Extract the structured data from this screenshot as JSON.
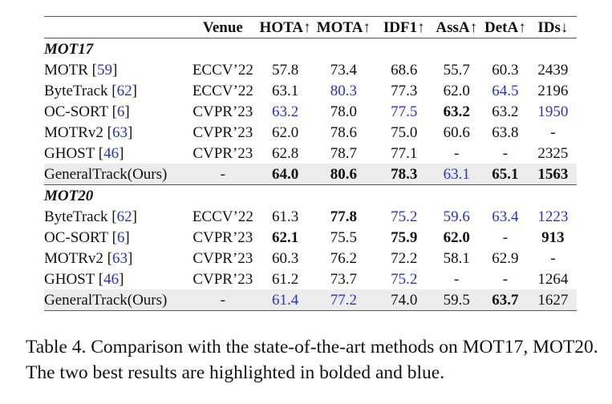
{
  "table": {
    "headers": [
      "",
      "Venue",
      "HOTA↑",
      "MOTA↑",
      "IDF1↑",
      "AssA↑",
      "DetA↑",
      "IDs↓"
    ],
    "sections": [
      {
        "title": "MOT17",
        "rows": [
          {
            "method": "MOTR",
            "ref": "59",
            "venue": "ECCV’22",
            "hota": "57.8",
            "mota": "73.4",
            "idf1": "68.6",
            "assa": "55.7",
            "deta": "60.3",
            "ids": "2439"
          },
          {
            "method": "ByteTrack",
            "ref": "62",
            "venue": "ECCV’22",
            "hota": "63.1",
            "mota": "80.3",
            "idf1": "77.3",
            "assa": "62.0",
            "deta": "64.5",
            "ids": "2196"
          },
          {
            "method": "OC-SORT",
            "ref": "6",
            "venue": "CVPR’23",
            "hota": "63.2",
            "mota": "78.0",
            "idf1": "77.5",
            "assa": "63.2",
            "deta": "63.2",
            "ids": "1950"
          },
          {
            "method": "MOTRv2",
            "ref": "63",
            "venue": "CVPR’23",
            "hota": "62.0",
            "mota": "78.6",
            "idf1": "75.0",
            "assa": "60.6",
            "deta": "63.8",
            "ids": "-"
          },
          {
            "method": "GHOST",
            "ref": "46",
            "venue": "CVPR’23",
            "hota": "62.8",
            "mota": "78.7",
            "idf1": "77.1",
            "assa": "-",
            "deta": "-",
            "ids": "2325"
          },
          {
            "method": "GeneralTrack(Ours)",
            "ref": "",
            "venue": "-",
            "hota": "64.0",
            "mota": "80.6",
            "idf1": "78.3",
            "assa": "63.1",
            "deta": "65.1",
            "ids": "1563"
          }
        ]
      },
      {
        "title": "MOT20",
        "rows": [
          {
            "method": "ByteTrack",
            "ref": "62",
            "venue": "ECCV’22",
            "hota": "61.3",
            "mota": "77.8",
            "idf1": "75.2",
            "assa": "59.6",
            "deta": "63.4",
            "ids": "1223"
          },
          {
            "method": "OC-SORT",
            "ref": "6",
            "venue": "CVPR’23",
            "hota": "62.1",
            "mota": "75.5",
            "idf1": "75.9",
            "assa": "62.0",
            "deta": "-",
            "ids": "913"
          },
          {
            "method": "MOTRv2",
            "ref": "63",
            "venue": "CVPR’23",
            "hota": "60.3",
            "mota": "76.2",
            "idf1": "72.2",
            "assa": "58.1",
            "deta": "62.9",
            "ids": "-"
          },
          {
            "method": "GHOST",
            "ref": "46",
            "venue": "CVPR’23",
            "hota": "61.2",
            "mota": "73.7",
            "idf1": "75.2",
            "assa": "-",
            "deta": "-",
            "ids": "1264"
          },
          {
            "method": "GeneralTrack(Ours)",
            "ref": "",
            "venue": "-",
            "hota": "61.4",
            "mota": "77.2",
            "idf1": "74.0",
            "assa": "59.5",
            "deta": "63.7",
            "ids": "1627"
          }
        ]
      }
    ],
    "highlight_colors": {
      "best": "bold",
      "second": "#2533c9"
    }
  },
  "caption": {
    "label": "Table 4.",
    "text": "Comparison with the state-of-the-art methods on MOT17, MOT20. The two best results are highlighted in bolded and blue."
  }
}
